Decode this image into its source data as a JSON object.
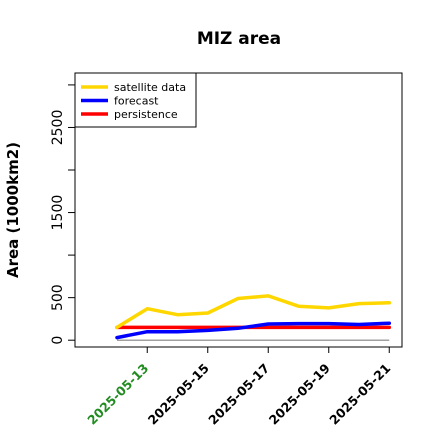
{
  "chart_data": {
    "type": "line",
    "title": "MIZ area",
    "xlabel": "",
    "ylabel": "Area (1000km2)",
    "x": [
      "2025-05-12",
      "2025-05-13",
      "2025-05-14",
      "2025-05-15",
      "2025-05-16",
      "2025-05-17",
      "2025-05-18",
      "2025-05-19",
      "2025-05-20",
      "2025-05-21"
    ],
    "x_tick_labels": [
      "2025-05-13",
      "2025-05-15",
      "2025-05-17",
      "2025-05-19",
      "2025-05-21"
    ],
    "x_tick_colors": [
      "#228B22",
      "#000000",
      "#000000",
      "#000000",
      "#000000"
    ],
    "y_ticks": [
      0,
      500,
      1500,
      2500
    ],
    "ylim": [
      -80,
      3140
    ],
    "grid": false,
    "legend_position": "top-left",
    "series": [
      {
        "name": "satellite data",
        "color": "#FFD700",
        "values": [
          150,
          370,
          300,
          320,
          490,
          520,
          400,
          380,
          430,
          440
        ]
      },
      {
        "name": "forecast",
        "color": "#0000FF",
        "values": [
          30,
          100,
          100,
          115,
          140,
          190,
          195,
          195,
          185,
          200
        ]
      },
      {
        "name": "persistence",
        "color": "#FF0000",
        "values": [
          150,
          150,
          150,
          150,
          150,
          150,
          150,
          150,
          150,
          150
        ]
      }
    ],
    "reference_line": {
      "value": 0,
      "color": "#A0A0A0"
    }
  }
}
